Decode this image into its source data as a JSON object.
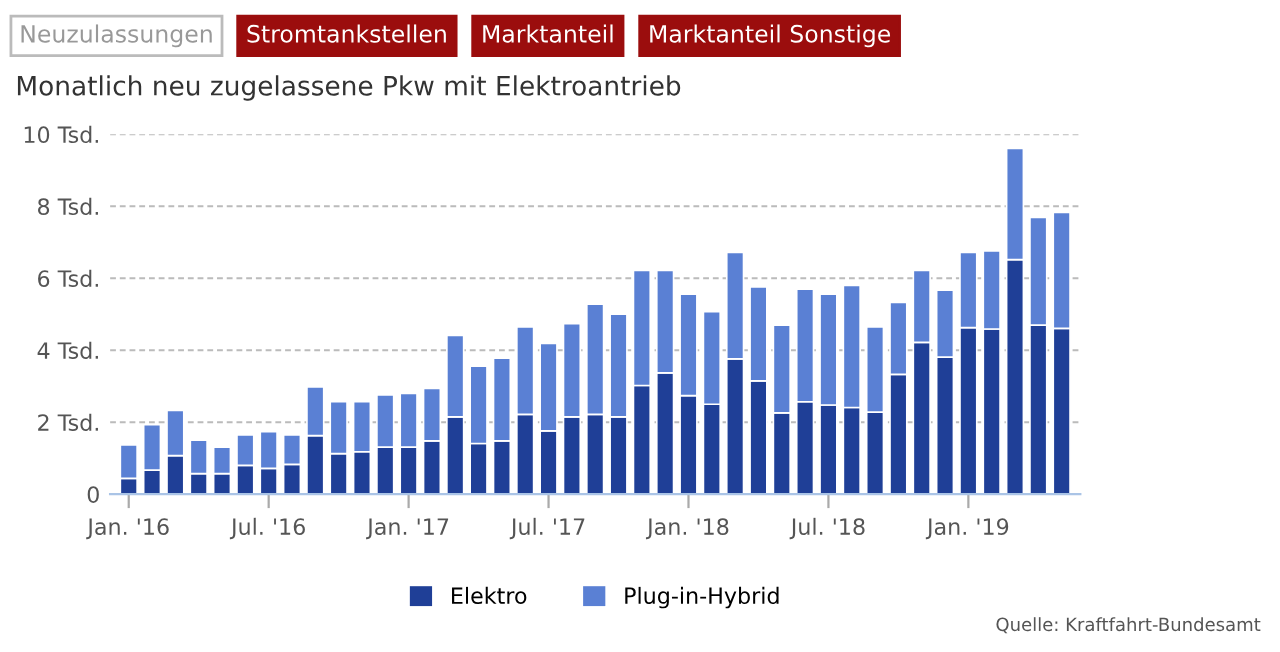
{
  "chart_data": {
    "type": "bar",
    "stacked": true,
    "title": "Monatlich neu zugelassene Pkw mit Elektroantrieb",
    "annotations": [
      "Neuzulassungen",
      "Stromtankstellen",
      "Marktanteil",
      "Marktanteil Sonstige",
      "Quelle: Kraftfahrt-Bundesamt"
    ],
    "categories": [
      "Jan. '16",
      null,
      null,
      null,
      null,
      null,
      "Jul. '16",
      null,
      null,
      null,
      null,
      null,
      "Jan. '17",
      null,
      null,
      null,
      null,
      null,
      "Jul. '17",
      null,
      null,
      null,
      null,
      null,
      "Jan. '18",
      null,
      null,
      null,
      null,
      null,
      "Jul. '18",
      null,
      null,
      null,
      null,
      null,
      "Jan. '19",
      null,
      null,
      null,
      null
    ],
    "series": [
      {
        "name": "Elektro",
        "color": "#1f3f97",
        "values": [
          0.44,
          0.67,
          1.07,
          0.57,
          0.57,
          0.8,
          0.72,
          0.83,
          1.63,
          1.13,
          1.18,
          1.31,
          1.31,
          1.48,
          2.15,
          1.41,
          1.48,
          2.22,
          1.76,
          2.15,
          2.22,
          2.15,
          3.02,
          3.37,
          2.74,
          2.5,
          3.76,
          3.15,
          2.26,
          2.57,
          2.48,
          2.41,
          2.28,
          3.33,
          4.22,
          3.81,
          4.63,
          4.59,
          6.52,
          4.7,
          4.61
        ]
      },
      {
        "name": "Plug-in-Hybrid",
        "color": "#5a80d4",
        "values": [
          0.93,
          1.26,
          1.26,
          0.93,
          0.74,
          0.85,
          1.02,
          0.82,
          1.35,
          1.44,
          1.39,
          1.45,
          1.49,
          1.46,
          2.26,
          2.15,
          2.3,
          2.43,
          2.43,
          2.59,
          3.06,
          2.85,
          3.2,
          2.85,
          2.82,
          2.57,
          2.96,
          2.61,
          2.44,
          3.13,
          3.08,
          3.39,
          2.37,
          2.0,
          2.0,
          1.86,
          2.09,
          2.17,
          3.09,
          2.99,
          3.22
        ]
      }
    ],
    "ylim": [
      0,
      10
    ],
    "yticks": [
      0,
      {
        "value": 2,
        "label": "2 Tsd."
      },
      {
        "value": 4,
        "label": "4 Tsd."
      },
      {
        "value": 6,
        "label": "6 Tsd."
      },
      {
        "value": 8,
        "label": "8 Tsd."
      },
      {
        "value": 10,
        "label": "10 Tsd."
      }
    ],
    "grid": "y",
    "legend": "bottom"
  }
}
